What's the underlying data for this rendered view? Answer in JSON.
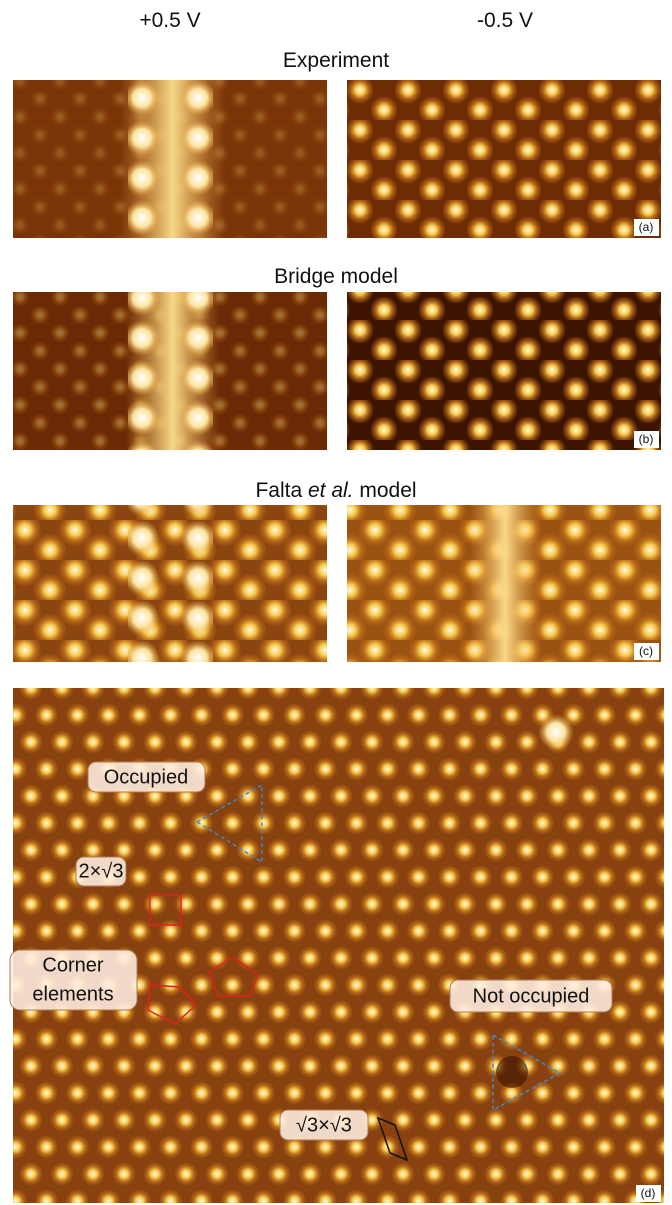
{
  "header": {
    "columns": [
      "+0.5 V",
      "-0.5 V"
    ]
  },
  "rows": [
    {
      "title": "Experiment",
      "label": "(a)"
    },
    {
      "title": "Bridge model",
      "label": "(b)"
    },
    {
      "title": "Falta",
      "title_italic": "et al.",
      "title_end": "model",
      "label": "(c)"
    }
  ],
  "panel_d": {
    "label": "(d)",
    "annotations": {
      "occupied": "Occupied",
      "two_by_root3": "2×√3",
      "corner": [
        "Corner",
        "elements"
      ],
      "not_occupied": "Not occupied",
      "root3": "√3×√3"
    }
  }
}
